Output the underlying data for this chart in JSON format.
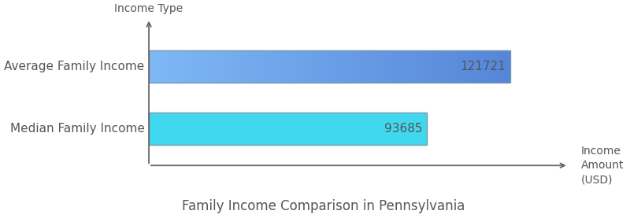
{
  "categories": [
    "Average Family Income",
    "Median Family Income"
  ],
  "values": [
    121721,
    93685
  ],
  "avg_color_left": "#7eb8f5",
  "avg_color_right": "#5585d8",
  "med_color": "#40d8ee",
  "bar_edgecolor": "#7799aa",
  "value_labels": [
    "121721",
    "93685"
  ],
  "title": "Family Income Comparison in Pennsylvania",
  "xlabel": "Income\nAmount\n(USD)",
  "ylabel": "Income Type",
  "xlim": [
    0,
    140000
  ],
  "title_fontsize": 12,
  "label_fontsize": 11,
  "tick_fontsize": 11,
  "value_fontsize": 11,
  "background_color": "#ffffff",
  "text_color": "#555555"
}
